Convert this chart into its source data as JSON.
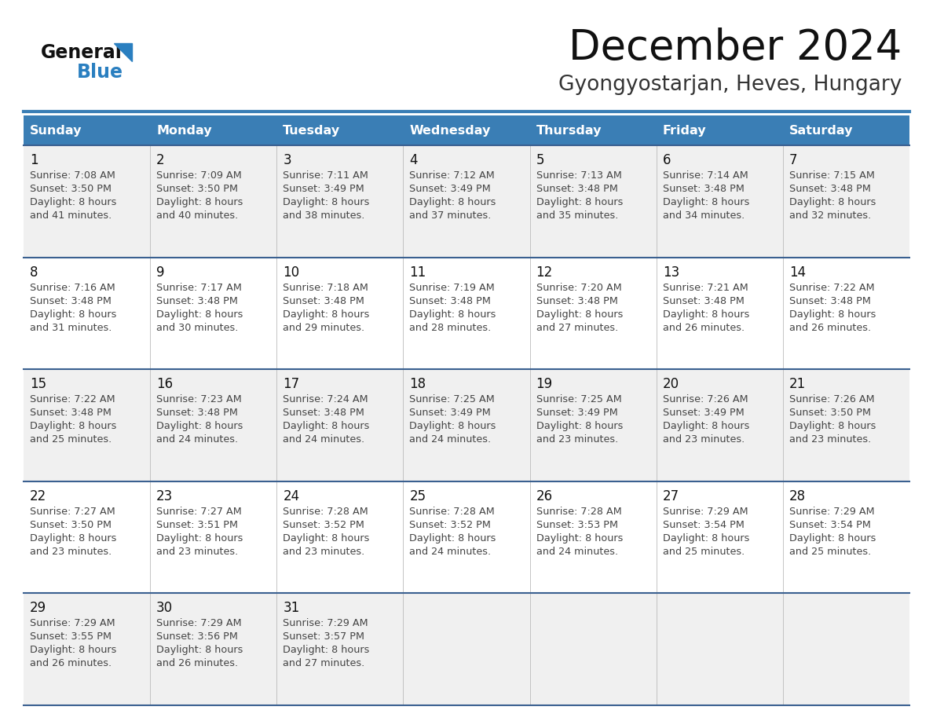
{
  "title": "December 2024",
  "subtitle": "Gyongyostarjan, Heves, Hungary",
  "days_of_week": [
    "Sunday",
    "Monday",
    "Tuesday",
    "Wednesday",
    "Thursday",
    "Friday",
    "Saturday"
  ],
  "header_bg": "#3A7EB5",
  "header_text_color": "#FFFFFF",
  "cell_bg_odd": "#F0F0F0",
  "cell_bg_even": "#FFFFFF",
  "row_line_color": "#3A6090",
  "text_color": "#444444",
  "day_num_color": "#111111",
  "logo_general_color": "#111111",
  "logo_blue_color": "#2A7FC0",
  "calendar": [
    [
      {
        "day": 1,
        "sunrise": "7:08 AM",
        "sunset": "3:50 PM",
        "daylight_h": "8 hours",
        "daylight_m": "41 minutes."
      },
      {
        "day": 2,
        "sunrise": "7:09 AM",
        "sunset": "3:50 PM",
        "daylight_h": "8 hours",
        "daylight_m": "40 minutes."
      },
      {
        "day": 3,
        "sunrise": "7:11 AM",
        "sunset": "3:49 PM",
        "daylight_h": "8 hours",
        "daylight_m": "38 minutes."
      },
      {
        "day": 4,
        "sunrise": "7:12 AM",
        "sunset": "3:49 PM",
        "daylight_h": "8 hours",
        "daylight_m": "37 minutes."
      },
      {
        "day": 5,
        "sunrise": "7:13 AM",
        "sunset": "3:48 PM",
        "daylight_h": "8 hours",
        "daylight_m": "35 minutes."
      },
      {
        "day": 6,
        "sunrise": "7:14 AM",
        "sunset": "3:48 PM",
        "daylight_h": "8 hours",
        "daylight_m": "34 minutes."
      },
      {
        "day": 7,
        "sunrise": "7:15 AM",
        "sunset": "3:48 PM",
        "daylight_h": "8 hours",
        "daylight_m": "32 minutes."
      }
    ],
    [
      {
        "day": 8,
        "sunrise": "7:16 AM",
        "sunset": "3:48 PM",
        "daylight_h": "8 hours",
        "daylight_m": "31 minutes."
      },
      {
        "day": 9,
        "sunrise": "7:17 AM",
        "sunset": "3:48 PM",
        "daylight_h": "8 hours",
        "daylight_m": "30 minutes."
      },
      {
        "day": 10,
        "sunrise": "7:18 AM",
        "sunset": "3:48 PM",
        "daylight_h": "8 hours",
        "daylight_m": "29 minutes."
      },
      {
        "day": 11,
        "sunrise": "7:19 AM",
        "sunset": "3:48 PM",
        "daylight_h": "8 hours",
        "daylight_m": "28 minutes."
      },
      {
        "day": 12,
        "sunrise": "7:20 AM",
        "sunset": "3:48 PM",
        "daylight_h": "8 hours",
        "daylight_m": "27 minutes."
      },
      {
        "day": 13,
        "sunrise": "7:21 AM",
        "sunset": "3:48 PM",
        "daylight_h": "8 hours",
        "daylight_m": "26 minutes."
      },
      {
        "day": 14,
        "sunrise": "7:22 AM",
        "sunset": "3:48 PM",
        "daylight_h": "8 hours",
        "daylight_m": "26 minutes."
      }
    ],
    [
      {
        "day": 15,
        "sunrise": "7:22 AM",
        "sunset": "3:48 PM",
        "daylight_h": "8 hours",
        "daylight_m": "25 minutes."
      },
      {
        "day": 16,
        "sunrise": "7:23 AM",
        "sunset": "3:48 PM",
        "daylight_h": "8 hours",
        "daylight_m": "24 minutes."
      },
      {
        "day": 17,
        "sunrise": "7:24 AM",
        "sunset": "3:48 PM",
        "daylight_h": "8 hours",
        "daylight_m": "24 minutes."
      },
      {
        "day": 18,
        "sunrise": "7:25 AM",
        "sunset": "3:49 PM",
        "daylight_h": "8 hours",
        "daylight_m": "24 minutes."
      },
      {
        "day": 19,
        "sunrise": "7:25 AM",
        "sunset": "3:49 PM",
        "daylight_h": "8 hours",
        "daylight_m": "23 minutes."
      },
      {
        "day": 20,
        "sunrise": "7:26 AM",
        "sunset": "3:49 PM",
        "daylight_h": "8 hours",
        "daylight_m": "23 minutes."
      },
      {
        "day": 21,
        "sunrise": "7:26 AM",
        "sunset": "3:50 PM",
        "daylight_h": "8 hours",
        "daylight_m": "23 minutes."
      }
    ],
    [
      {
        "day": 22,
        "sunrise": "7:27 AM",
        "sunset": "3:50 PM",
        "daylight_h": "8 hours",
        "daylight_m": "23 minutes."
      },
      {
        "day": 23,
        "sunrise": "7:27 AM",
        "sunset": "3:51 PM",
        "daylight_h": "8 hours",
        "daylight_m": "23 minutes."
      },
      {
        "day": 24,
        "sunrise": "7:28 AM",
        "sunset": "3:52 PM",
        "daylight_h": "8 hours",
        "daylight_m": "23 minutes."
      },
      {
        "day": 25,
        "sunrise": "7:28 AM",
        "sunset": "3:52 PM",
        "daylight_h": "8 hours",
        "daylight_m": "24 minutes."
      },
      {
        "day": 26,
        "sunrise": "7:28 AM",
        "sunset": "3:53 PM",
        "daylight_h": "8 hours",
        "daylight_m": "24 minutes."
      },
      {
        "day": 27,
        "sunrise": "7:29 AM",
        "sunset": "3:54 PM",
        "daylight_h": "8 hours",
        "daylight_m": "25 minutes."
      },
      {
        "day": 28,
        "sunrise": "7:29 AM",
        "sunset": "3:54 PM",
        "daylight_h": "8 hours",
        "daylight_m": "25 minutes."
      }
    ],
    [
      {
        "day": 29,
        "sunrise": "7:29 AM",
        "sunset": "3:55 PM",
        "daylight_h": "8 hours",
        "daylight_m": "26 minutes."
      },
      {
        "day": 30,
        "sunrise": "7:29 AM",
        "sunset": "3:56 PM",
        "daylight_h": "8 hours",
        "daylight_m": "26 minutes."
      },
      {
        "day": 31,
        "sunrise": "7:29 AM",
        "sunset": "3:57 PM",
        "daylight_h": "8 hours",
        "daylight_m": "27 minutes."
      },
      null,
      null,
      null,
      null
    ]
  ]
}
